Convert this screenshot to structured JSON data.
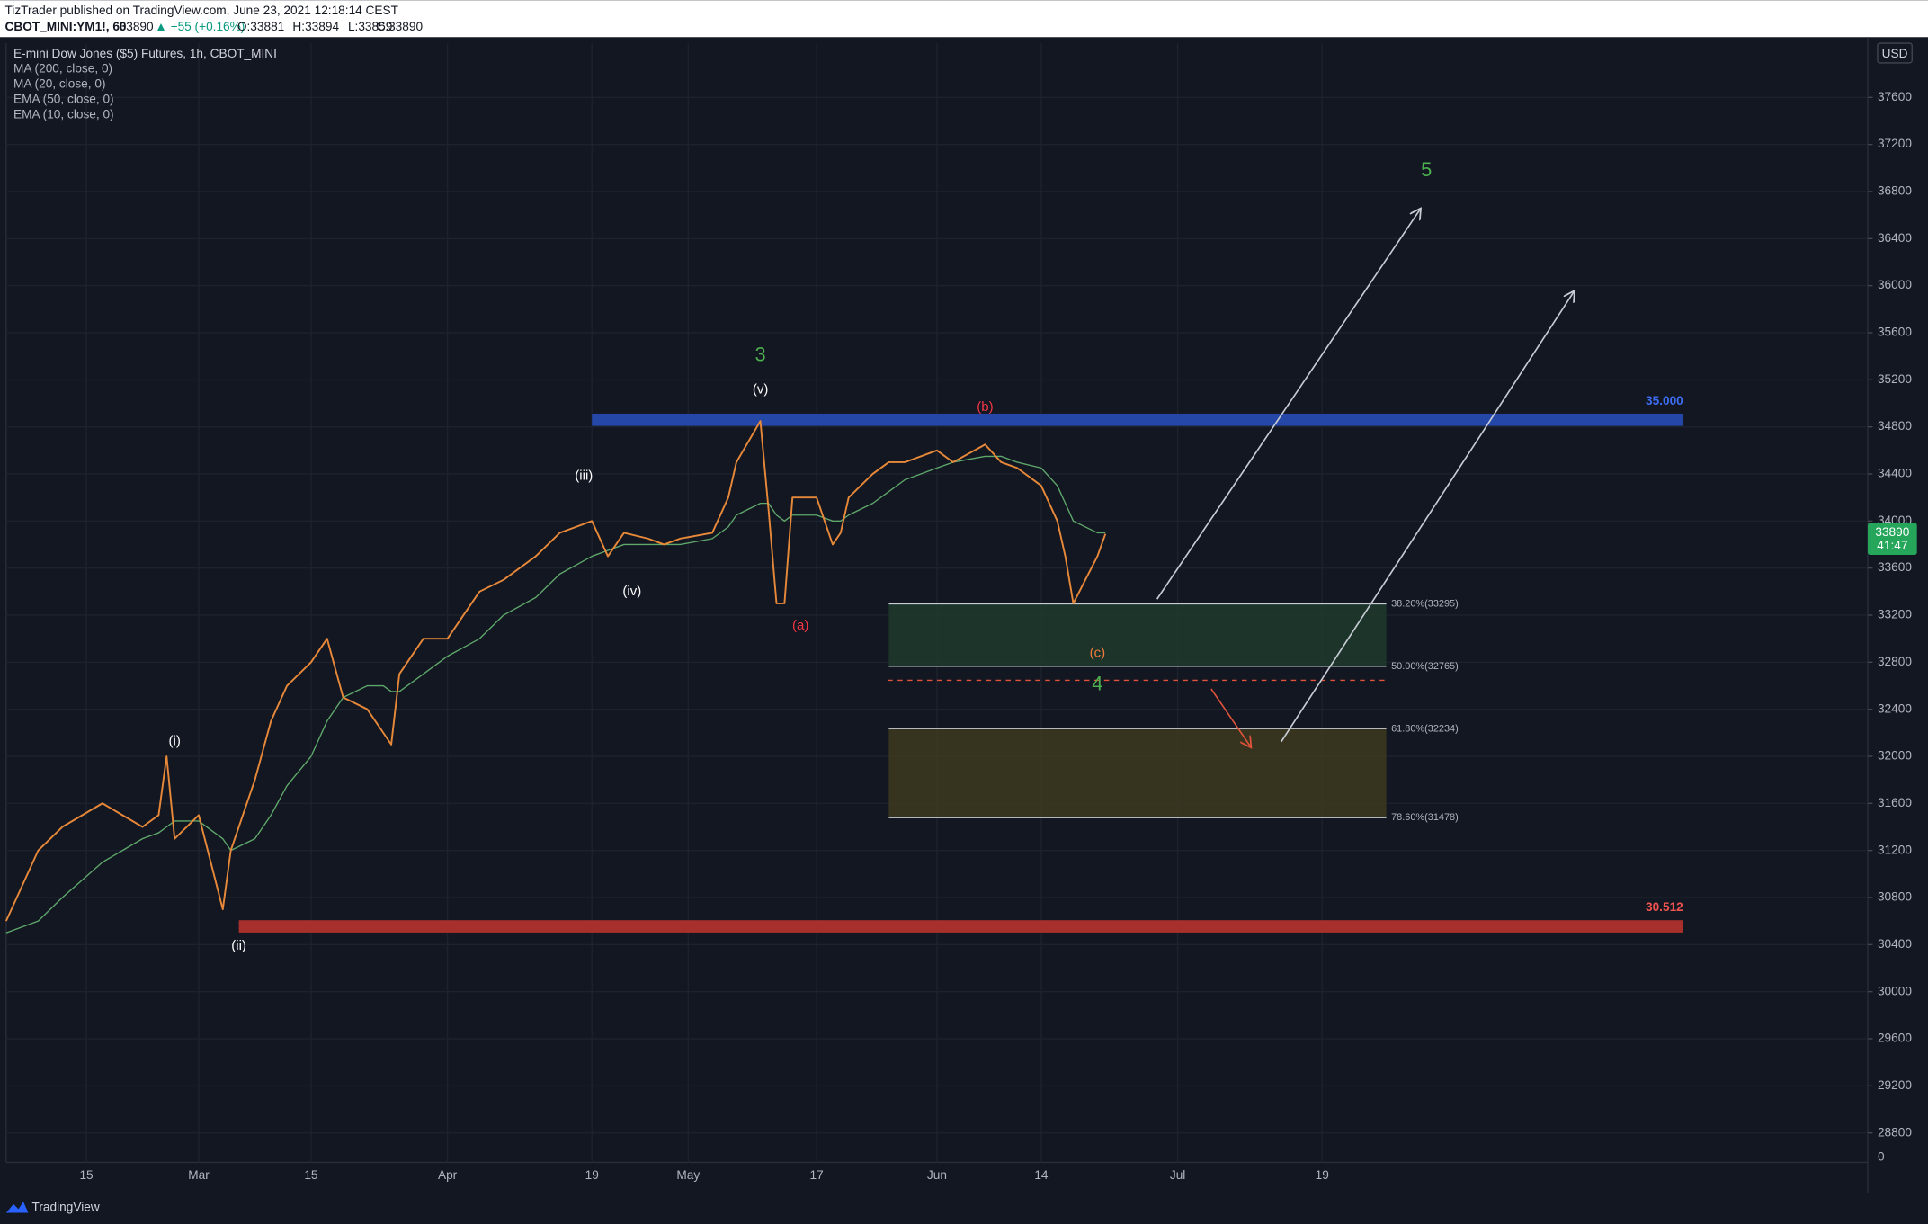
{
  "header": {
    "author": "TizTrader published on TradingView.com, June 23, 2021 12:18:14 CEST",
    "symbol": "CBOT_MINI:YM1!, 60",
    "last": "33890",
    "change": "▲ +55 (+0.16%)",
    "ohlc": [
      "O:33881",
      "H:33894",
      "L:33859",
      "C:33890"
    ]
  },
  "footer": {
    "brand": "TradingView"
  },
  "chart_data": {
    "type": "line",
    "title": "E-mini Dow Jones ($5) Futures, 1h, CBOT_MINI",
    "currency": "USD",
    "x": [
      "02-05",
      "02-09",
      "02-12",
      "02-17",
      "02-22",
      "02-24",
      "02-25",
      "02-26",
      "03-01",
      "03-04",
      "03-05",
      "03-08",
      "03-10",
      "03-12",
      "03-15",
      "03-17",
      "03-19",
      "03-22",
      "03-24",
      "03-25",
      "03-26",
      "03-29",
      "04-01",
      "04-05",
      "04-08",
      "04-12",
      "04-15",
      "04-19",
      "04-21",
      "04-23",
      "04-26",
      "04-28",
      "04-30",
      "05-04",
      "05-06",
      "05-07",
      "05-10",
      "05-11",
      "05-12",
      "05-13",
      "05-14",
      "05-17",
      "05-19",
      "05-20",
      "05-21",
      "05-24",
      "05-26",
      "05-28",
      "06-01",
      "06-03",
      "06-07",
      "06-09",
      "06-11",
      "06-14",
      "06-16",
      "06-17",
      "06-18",
      "06-21",
      "06-22"
    ],
    "series": [
      {
        "color": "#e8893a",
        "values": [
          30600,
          31200,
          31400,
          31600,
          31400,
          31500,
          32000,
          31300,
          31500,
          30700,
          31200,
          31800,
          32300,
          32600,
          32800,
          33000,
          32500,
          32400,
          32200,
          32100,
          32700,
          33000,
          33000,
          33400,
          33500,
          33700,
          33900,
          34000,
          33700,
          33900,
          33850,
          33800,
          33850,
          33900,
          34200,
          34500,
          34850,
          34100,
          33300,
          33300,
          34200,
          34200,
          33800,
          33900,
          34200,
          34400,
          34500,
          34500,
          34600,
          34500,
          34650,
          34500,
          34450,
          34300,
          34000,
          33700,
          33300,
          33700,
          33890
        ]
      }
    ],
    "indicators": [
      {
        "name": "MA (200, close, 0)"
      },
      {
        "name": "MA (20, close, 0)"
      },
      {
        "name": "EMA (50, close, 0)",
        "color": "#5fa86b",
        "values": [
          30500,
          30600,
          30800,
          31100,
          31300,
          31350,
          31400,
          31450,
          31450,
          31300,
          31200,
          31300,
          31500,
          31750,
          32000,
          32300,
          32500,
          32600,
          32600,
          32550,
          32550,
          32700,
          32850,
          33000,
          33200,
          33350,
          33550,
          33700,
          33750,
          33800,
          33800,
          33800,
          33800,
          33850,
          33950,
          34050,
          34150,
          34150,
          34050,
          34000,
          34050,
          34050,
          34000,
          34000,
          34050,
          34150,
          34250,
          34350,
          34450,
          34500,
          34550,
          34550,
          34500,
          34450,
          34300,
          34150,
          34000,
          33900,
          33900
        ]
      },
      {
        "name": "EMA (10, close, 0)"
      }
    ],
    "xlim": [
      "02-05",
      "09-25"
    ],
    "xticks": [
      {
        "value": "02-15",
        "label": "15"
      },
      {
        "value": "03-01",
        "label": "Mar"
      },
      {
        "value": "03-15",
        "label": "15"
      },
      {
        "value": "04-01",
        "label": "Apr"
      },
      {
        "value": "04-19",
        "label": "19"
      },
      {
        "value": "05-01",
        "label": "May"
      },
      {
        "value": "05-17",
        "label": "17"
      },
      {
        "value": "06-01",
        "label": "Jun"
      },
      {
        "value": "06-14",
        "label": "14"
      },
      {
        "value": "07-01",
        "label": "Jul"
      },
      {
        "value": "07-19",
        "label": "19"
      }
    ],
    "ylim": [
      28550,
      38060
    ],
    "yticks": [
      28800,
      29200,
      29600,
      30000,
      30400,
      30800,
      31200,
      31600,
      32000,
      32400,
      32800,
      33200,
      33600,
      34000,
      34400,
      34800,
      35200,
      35600,
      36000,
      36400,
      36800,
      37200,
      37600
    ],
    "axis_bottom_label": "0",
    "grid": true,
    "price_badge": {
      "value": 33890,
      "countdown": "41:47",
      "color": "#26a65b"
    },
    "levels": [
      {
        "label": "35.000",
        "value": 34860,
        "start": "04-19",
        "end": "09-02",
        "color": "#2447a8",
        "label_color": "#3d6df2"
      },
      {
        "label": "30.512",
        "value": 30555,
        "start": "03-06",
        "end": "09-02",
        "color": "#a8302c",
        "label_color": "#f05350"
      }
    ],
    "fib": {
      "start": "05-26",
      "end": "07-27",
      "levels": [
        {
          "label": "38.20%(33295)",
          "value": 33295
        },
        {
          "label": "50.00%(32765)",
          "value": 32765
        },
        {
          "label": "61.80%(32234)",
          "value": 32234
        },
        {
          "label": "78.60%(31478)",
          "value": 31478
        }
      ]
    },
    "annotations": [
      {
        "text": "3",
        "x": "05-10",
        "y": 35405,
        "color": "#4caf50",
        "size": 16
      },
      {
        "text": "(v)",
        "x": "05-10",
        "y": 35113,
        "color": "#ffffff",
        "size": 11
      },
      {
        "text": "(b)",
        "x": "06-07",
        "y": 34966,
        "color": "#f23645",
        "size": 11
      },
      {
        "text": "(iii)",
        "x": "04-18",
        "y": 34380,
        "color": "#ffffff",
        "size": 11
      },
      {
        "text": "(iv)",
        "x": "04-24",
        "y": 33400,
        "color": "#ffffff",
        "size": 11
      },
      {
        "text": "(a)",
        "x": "05-15",
        "y": 33106,
        "color": "#f23645",
        "size": 11
      },
      {
        "text": "(c)",
        "x": "06-21",
        "y": 32876,
        "color": "#f07a3a",
        "size": 11
      },
      {
        "text": "4",
        "x": "06-21",
        "y": 32604,
        "color": "#4caf50",
        "size": 16
      },
      {
        "text": "(i)",
        "x": "02-26",
        "y": 32124,
        "color": "#ffffff",
        "size": 11
      },
      {
        "text": "(ii)",
        "x": "03-06",
        "y": 30388,
        "color": "#ffffff",
        "size": 11
      },
      {
        "text": "5",
        "x": "08-01",
        "y": 36973,
        "color": "#4caf50",
        "size": 16
      }
    ]
  }
}
